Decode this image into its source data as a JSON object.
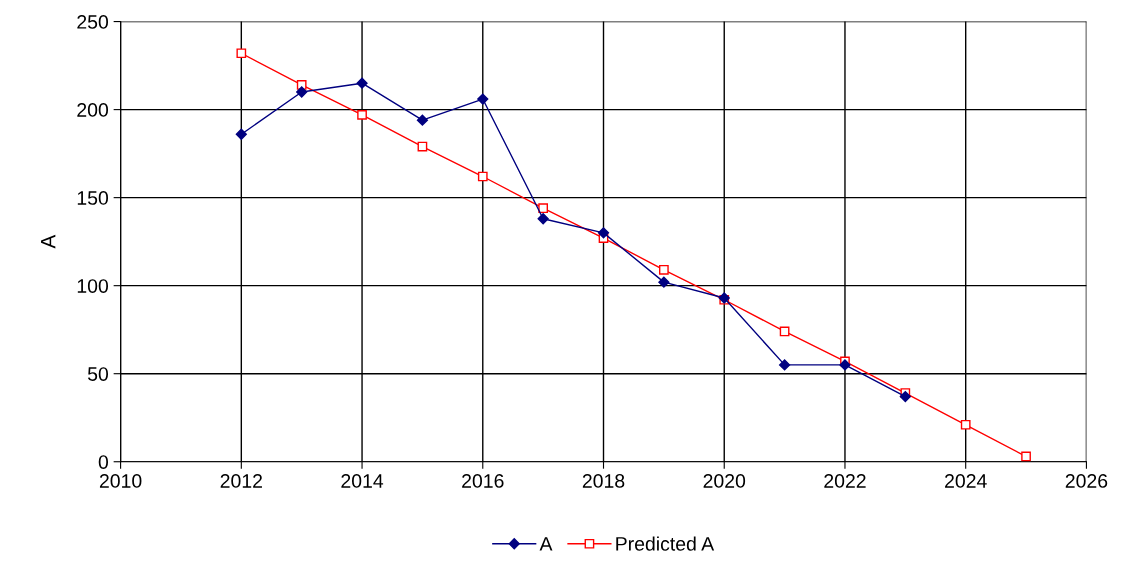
{
  "chart_data": {
    "type": "line",
    "ylabel": "A",
    "xlim": [
      2010,
      2026
    ],
    "xticks": [
      2010,
      2012,
      2014,
      2016,
      2018,
      2020,
      2022,
      2024,
      2026
    ],
    "ylim": [
      0,
      250
    ],
    "yticks": [
      0,
      50,
      100,
      150,
      200,
      250
    ],
    "grid": true,
    "legend": "bottom",
    "series": [
      {
        "name": "A",
        "color": "#000080",
        "marker": "diamond",
        "x": [
          2012,
          2013,
          2014,
          2015,
          2016,
          2017,
          2018,
          2019,
          2020,
          2021,
          2022,
          2023
        ],
        "values": [
          186,
          210,
          215,
          194,
          206,
          138,
          130,
          102,
          93,
          55,
          55,
          37
        ]
      },
      {
        "name": "Predicted A",
        "color": "#ff0000",
        "marker": "square",
        "x": [
          2012,
          2013,
          2014,
          2015,
          2016,
          2017,
          2018,
          2019,
          2020,
          2021,
          2022,
          2023,
          2024,
          2025
        ],
        "values": [
          232,
          214,
          197,
          179,
          162,
          144,
          127,
          109,
          92,
          74,
          57,
          39,
          21,
          3
        ]
      }
    ]
  }
}
